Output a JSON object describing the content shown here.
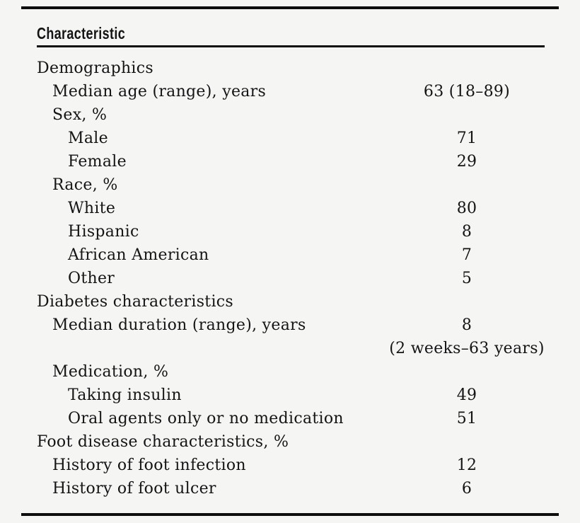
{
  "colors": {
    "background": "#f5f5f4",
    "text": "#141414",
    "rule": "#0d0d0d"
  },
  "table": {
    "header": "Characteristic",
    "rows": [
      {
        "label": "Demographics",
        "value": "",
        "level": 0
      },
      {
        "label": "Median age (range), years",
        "value": "63 (18–89)",
        "level": 1
      },
      {
        "label": "Sex, %",
        "value": "",
        "level": 1
      },
      {
        "label": "Male",
        "value": "71",
        "level": 2
      },
      {
        "label": "Female",
        "value": "29",
        "level": 2
      },
      {
        "label": "Race, %",
        "value": "",
        "level": 1
      },
      {
        "label": "White",
        "value": "80",
        "level": 2
      },
      {
        "label": "Hispanic",
        "value": "8",
        "level": 2
      },
      {
        "label": "African American",
        "value": "7",
        "level": 2
      },
      {
        "label": "Other",
        "value": "5",
        "level": 2
      },
      {
        "label": "Diabetes characteristics",
        "value": "",
        "level": 0
      },
      {
        "label": "Median duration (range), years",
        "value": "8",
        "level": 1
      },
      {
        "label": "",
        "value": "(2 weeks–63 years)",
        "level": 1
      },
      {
        "label": "Medication, %",
        "value": "",
        "level": 1
      },
      {
        "label": "Taking insulin",
        "value": "49",
        "level": 2
      },
      {
        "label": "Oral agents only or no medication",
        "value": "51",
        "level": 2
      },
      {
        "label": "Foot disease characteristics, %",
        "value": "",
        "level": 0
      },
      {
        "label": "History of foot infection",
        "value": "12",
        "level": 1
      },
      {
        "label": "History of foot ulcer",
        "value": "6",
        "level": 1
      }
    ]
  }
}
